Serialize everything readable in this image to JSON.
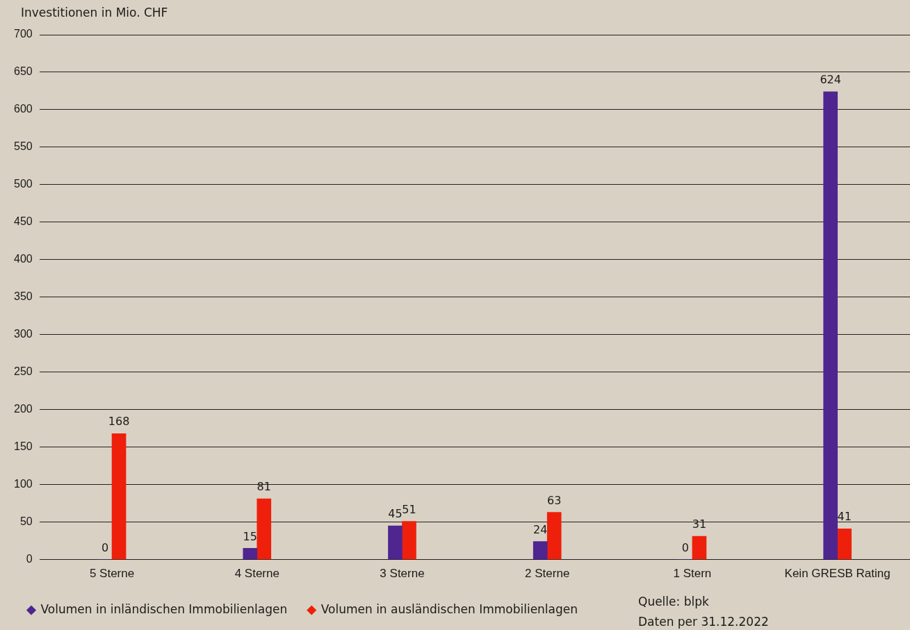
{
  "chart_data": {
    "type": "bar",
    "ylabel": "Investitionen in Mio. CHF",
    "categories": [
      "5 Sterne",
      "4 Sterne",
      "3 Sterne",
      "2 Sterne",
      "1 Stern",
      "Kein GRESB Rating"
    ],
    "series": [
      {
        "name": "Volumen in inländischen Immobilienlagen",
        "color": "#4f2590",
        "values": [
          0,
          15,
          45,
          24,
          0,
          624
        ]
      },
      {
        "name": "Volumen in ausländischen Immobilienlagen",
        "color": "#ee200c",
        "values": [
          168,
          81,
          51,
          63,
          31,
          41
        ]
      }
    ],
    "ylim": [
      0,
      700
    ],
    "yticks": [
      0,
      50,
      100,
      150,
      200,
      250,
      300,
      350,
      400,
      450,
      500,
      550,
      600,
      650,
      700
    ],
    "grid": "y",
    "legend": "bottom left",
    "data_labels": true,
    "annotations": [
      "Quelle: blpk",
      "Daten per 31.12.2022"
    ]
  }
}
